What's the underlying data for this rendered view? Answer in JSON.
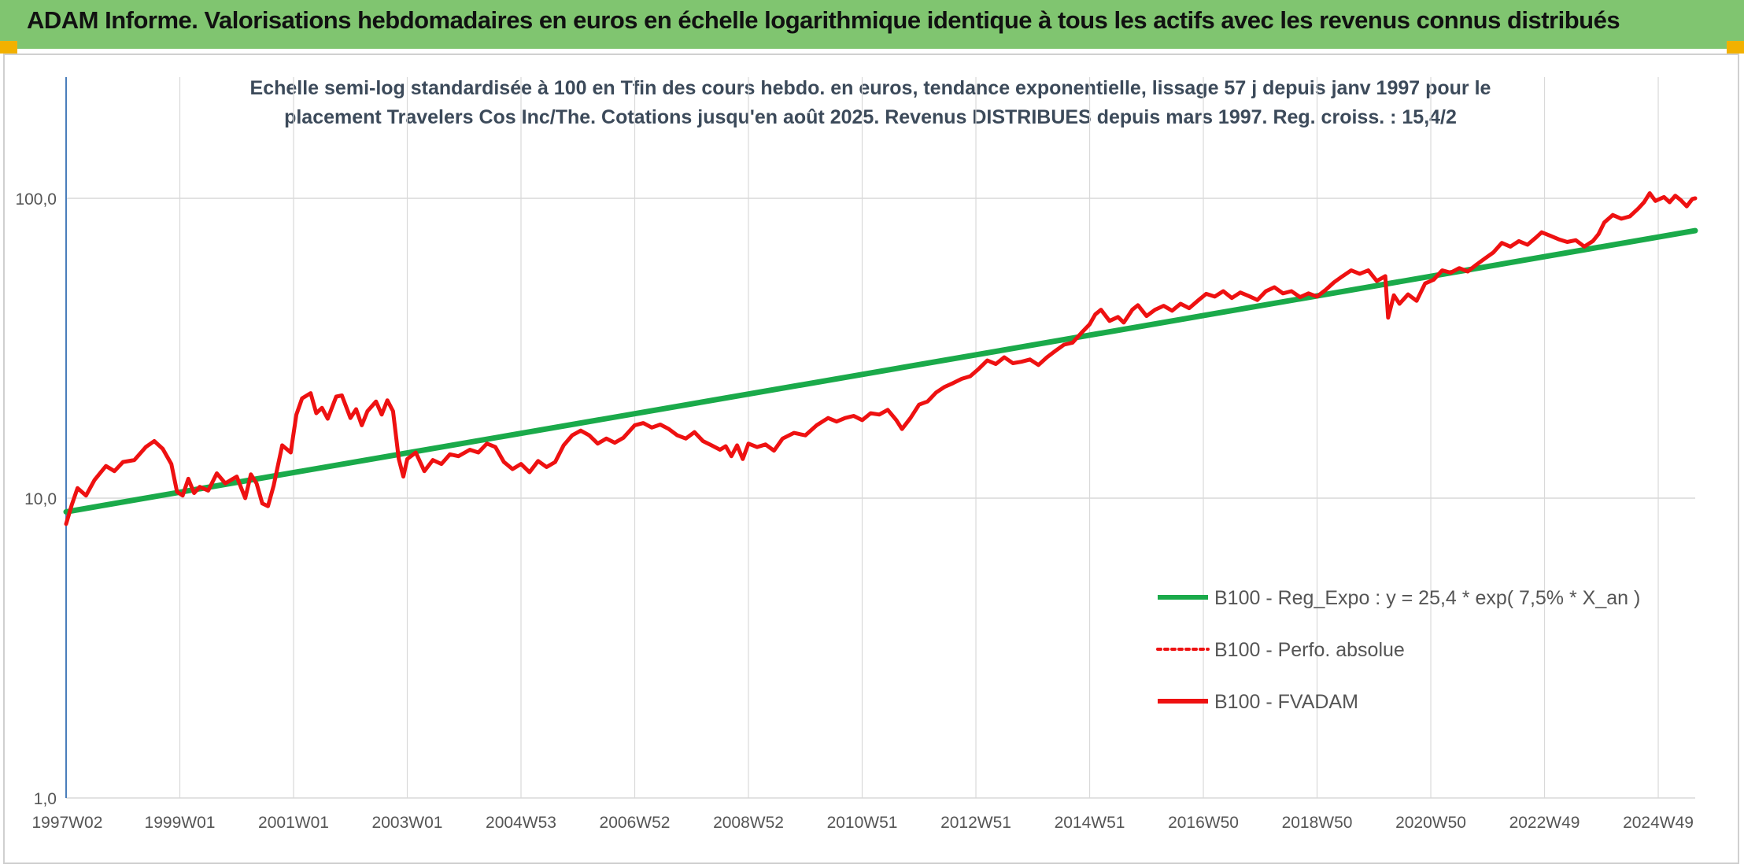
{
  "banner": {
    "title": "ADAM Informe. Valorisations hebdomadaires en euros en échelle logarithmique identique à tous les actifs avec les revenus connus distribués"
  },
  "colors": {
    "banner_bg": "#80c570",
    "accent_corner": "#f2b100",
    "trend": "#1aaa4a",
    "fvadam": "#ee1111",
    "perfo": "#ee1111",
    "grid": "#d9d9d9",
    "axis": "#4a7ebb"
  },
  "chart_data": {
    "type": "line",
    "title_lines": [
      "Echelle semi-log standardisée à 100 en Tfin des cours hebdo. en euros, tendance exponentielle, lissage 57 j depuis janv 1997 pour le",
      "placement Travelers Cos Inc/The. Cotations jusqu'en août 2025. Revenus DISTRIBUES depuis mars 1997. Reg. croiss. : 15,4/2"
    ],
    "y_scale": "log",
    "ylim": [
      1,
      200
    ],
    "y_ticks": [
      {
        "value": 1,
        "label": "1,0"
      },
      {
        "value": 10,
        "label": "10,0"
      },
      {
        "value": 100,
        "label": "100,0"
      }
    ],
    "x_range": [
      1997.0,
      2025.65
    ],
    "x_ticks": [
      {
        "label": "1997W02",
        "x": 1997.02
      },
      {
        "label": "1999W01",
        "x": 1999.0
      },
      {
        "label": "2001W01",
        "x": 2001.0
      },
      {
        "label": "2003W01",
        "x": 2003.0
      },
      {
        "label": "2004W53",
        "x": 2005.0
      },
      {
        "label": "2006W52",
        "x": 2007.0
      },
      {
        "label": "2008W52",
        "x": 2009.0
      },
      {
        "label": "2010W51",
        "x": 2011.0
      },
      {
        "label": "2012W51",
        "x": 2013.0
      },
      {
        "label": "2014W51",
        "x": 2015.0
      },
      {
        "label": "2016W50",
        "x": 2017.0
      },
      {
        "label": "2018W50",
        "x": 2019.0
      },
      {
        "label": "2020W50",
        "x": 2021.0
      },
      {
        "label": "2022W49",
        "x": 2023.0
      },
      {
        "label": "2024W49",
        "x": 2025.0
      }
    ],
    "grid": true,
    "legend_position": "right",
    "series": [
      {
        "name": "B100 - Reg_Expo : y = 25,4 * exp( 7,5% *  X_an )",
        "style": "solid-thick",
        "color": "#1aaa4a",
        "points": [
          [
            1997.0,
            9.0
          ],
          [
            2025.65,
            78.0
          ]
        ]
      },
      {
        "name": "B100 - Perfo. absolue",
        "style": "dotted",
        "color": "#ee1111",
        "points": []
      },
      {
        "name": "B100 - FVADAM",
        "style": "solid",
        "color": "#ee1111",
        "points": [
          [
            1997.0,
            8.2
          ],
          [
            1997.1,
            9.5
          ],
          [
            1997.2,
            10.8
          ],
          [
            1997.35,
            10.2
          ],
          [
            1997.5,
            11.5
          ],
          [
            1997.7,
            12.8
          ],
          [
            1997.85,
            12.3
          ],
          [
            1998.0,
            13.2
          ],
          [
            1998.2,
            13.4
          ],
          [
            1998.4,
            14.8
          ],
          [
            1998.55,
            15.5
          ],
          [
            1998.7,
            14.6
          ],
          [
            1998.85,
            13.0
          ],
          [
            1998.95,
            10.5
          ],
          [
            1999.05,
            10.2
          ],
          [
            1999.15,
            11.6
          ],
          [
            1999.25,
            10.4
          ],
          [
            1999.35,
            10.9
          ],
          [
            1999.5,
            10.6
          ],
          [
            1999.65,
            12.1
          ],
          [
            1999.8,
            11.2
          ],
          [
            2000.0,
            11.8
          ],
          [
            2000.15,
            10.0
          ],
          [
            2000.25,
            12.0
          ],
          [
            2000.35,
            11.2
          ],
          [
            2000.45,
            9.6
          ],
          [
            2000.55,
            9.4
          ],
          [
            2000.65,
            11.0
          ],
          [
            2000.8,
            15.0
          ],
          [
            2000.95,
            14.2
          ],
          [
            2001.05,
            19.0
          ],
          [
            2001.15,
            21.5
          ],
          [
            2001.3,
            22.4
          ],
          [
            2001.4,
            19.2
          ],
          [
            2001.5,
            20.0
          ],
          [
            2001.6,
            18.4
          ],
          [
            2001.75,
            21.8
          ],
          [
            2001.85,
            22.0
          ],
          [
            2002.0,
            18.5
          ],
          [
            2002.1,
            19.8
          ],
          [
            2002.2,
            17.5
          ],
          [
            2002.3,
            19.5
          ],
          [
            2002.45,
            21.0
          ],
          [
            2002.55,
            19.0
          ],
          [
            2002.65,
            21.2
          ],
          [
            2002.75,
            19.5
          ],
          [
            2002.85,
            13.5
          ],
          [
            2002.93,
            11.8
          ],
          [
            2003.0,
            13.5
          ],
          [
            2003.15,
            14.2
          ],
          [
            2003.3,
            12.3
          ],
          [
            2003.45,
            13.4
          ],
          [
            2003.6,
            13.0
          ],
          [
            2003.75,
            14.0
          ],
          [
            2003.9,
            13.8
          ],
          [
            2004.1,
            14.5
          ],
          [
            2004.25,
            14.2
          ],
          [
            2004.4,
            15.2
          ],
          [
            2004.55,
            14.8
          ],
          [
            2004.7,
            13.2
          ],
          [
            2004.85,
            12.5
          ],
          [
            2005.0,
            13.0
          ],
          [
            2005.15,
            12.2
          ],
          [
            2005.3,
            13.3
          ],
          [
            2005.45,
            12.7
          ],
          [
            2005.6,
            13.2
          ],
          [
            2005.75,
            15.0
          ],
          [
            2005.9,
            16.2
          ],
          [
            2006.05,
            16.8
          ],
          [
            2006.2,
            16.2
          ],
          [
            2006.35,
            15.2
          ],
          [
            2006.5,
            15.8
          ],
          [
            2006.65,
            15.3
          ],
          [
            2006.8,
            15.9
          ],
          [
            2007.0,
            17.5
          ],
          [
            2007.15,
            17.8
          ],
          [
            2007.3,
            17.2
          ],
          [
            2007.45,
            17.6
          ],
          [
            2007.6,
            17.0
          ],
          [
            2007.75,
            16.2
          ],
          [
            2007.9,
            15.8
          ],
          [
            2008.05,
            16.6
          ],
          [
            2008.2,
            15.5
          ],
          [
            2008.35,
            15.0
          ],
          [
            2008.5,
            14.5
          ],
          [
            2008.6,
            14.9
          ],
          [
            2008.7,
            13.8
          ],
          [
            2008.8,
            15.0
          ],
          [
            2008.9,
            13.5
          ],
          [
            2009.0,
            15.2
          ],
          [
            2009.15,
            14.8
          ],
          [
            2009.3,
            15.1
          ],
          [
            2009.45,
            14.4
          ],
          [
            2009.6,
            15.8
          ],
          [
            2009.8,
            16.5
          ],
          [
            2010.0,
            16.2
          ],
          [
            2010.2,
            17.5
          ],
          [
            2010.4,
            18.5
          ],
          [
            2010.55,
            18.0
          ],
          [
            2010.7,
            18.5
          ],
          [
            2010.85,
            18.8
          ],
          [
            2011.0,
            18.2
          ],
          [
            2011.15,
            19.2
          ],
          [
            2011.3,
            19.0
          ],
          [
            2011.45,
            19.7
          ],
          [
            2011.6,
            18.2
          ],
          [
            2011.7,
            17.0
          ],
          [
            2011.85,
            18.5
          ],
          [
            2012.0,
            20.5
          ],
          [
            2012.15,
            21.0
          ],
          [
            2012.3,
            22.5
          ],
          [
            2012.45,
            23.5
          ],
          [
            2012.6,
            24.2
          ],
          [
            2012.75,
            25.0
          ],
          [
            2012.9,
            25.5
          ],
          [
            2013.05,
            27.0
          ],
          [
            2013.2,
            28.8
          ],
          [
            2013.35,
            28.0
          ],
          [
            2013.5,
            29.5
          ],
          [
            2013.65,
            28.2
          ],
          [
            2013.8,
            28.5
          ],
          [
            2013.95,
            29.0
          ],
          [
            2014.1,
            27.8
          ],
          [
            2014.25,
            29.5
          ],
          [
            2014.4,
            31.0
          ],
          [
            2014.55,
            32.5
          ],
          [
            2014.7,
            33.0
          ],
          [
            2014.85,
            35.5
          ],
          [
            2015.0,
            38.0
          ],
          [
            2015.1,
            41.0
          ],
          [
            2015.2,
            42.5
          ],
          [
            2015.35,
            39.0
          ],
          [
            2015.5,
            40.2
          ],
          [
            2015.6,
            38.5
          ],
          [
            2015.75,
            42.5
          ],
          [
            2015.85,
            44.0
          ],
          [
            2016.0,
            40.5
          ],
          [
            2016.15,
            42.5
          ],
          [
            2016.3,
            43.8
          ],
          [
            2016.45,
            42.2
          ],
          [
            2016.6,
            44.5
          ],
          [
            2016.75,
            43.0
          ],
          [
            2016.9,
            45.5
          ],
          [
            2017.05,
            48.0
          ],
          [
            2017.2,
            47.0
          ],
          [
            2017.35,
            49.0
          ],
          [
            2017.5,
            46.5
          ],
          [
            2017.65,
            48.5
          ],
          [
            2017.8,
            47.2
          ],
          [
            2017.95,
            45.8
          ],
          [
            2018.1,
            49.0
          ],
          [
            2018.25,
            50.5
          ],
          [
            2018.4,
            48.2
          ],
          [
            2018.55,
            49.0
          ],
          [
            2018.7,
            46.8
          ],
          [
            2018.85,
            48.2
          ],
          [
            2019.0,
            47.0
          ],
          [
            2019.15,
            49.5
          ],
          [
            2019.3,
            52.5
          ],
          [
            2019.45,
            55.0
          ],
          [
            2019.6,
            57.5
          ],
          [
            2019.75,
            56.0
          ],
          [
            2019.9,
            57.5
          ],
          [
            2020.05,
            53.0
          ],
          [
            2020.2,
            55.0
          ],
          [
            2020.25,
            40.0
          ],
          [
            2020.35,
            47.5
          ],
          [
            2020.45,
            44.5
          ],
          [
            2020.6,
            47.8
          ],
          [
            2020.75,
            45.5
          ],
          [
            2020.9,
            52.0
          ],
          [
            2021.05,
            53.5
          ],
          [
            2021.2,
            57.5
          ],
          [
            2021.35,
            56.5
          ],
          [
            2021.5,
            58.5
          ],
          [
            2021.65,
            57.0
          ],
          [
            2021.8,
            60.0
          ],
          [
            2021.95,
            63.0
          ],
          [
            2022.1,
            66.0
          ],
          [
            2022.25,
            71.0
          ],
          [
            2022.4,
            69.0
          ],
          [
            2022.55,
            72.0
          ],
          [
            2022.7,
            70.0
          ],
          [
            2022.85,
            74.0
          ],
          [
            2022.95,
            77.0
          ],
          [
            2023.1,
            75.0
          ],
          [
            2023.25,
            73.0
          ],
          [
            2023.4,
            71.5
          ],
          [
            2023.55,
            72.5
          ],
          [
            2023.7,
            69.0
          ],
          [
            2023.85,
            72.0
          ],
          [
            2023.95,
            76.0
          ],
          [
            2024.05,
            83.0
          ],
          [
            2024.2,
            88.0
          ],
          [
            2024.35,
            85.5
          ],
          [
            2024.5,
            87.0
          ],
          [
            2024.65,
            92.5
          ],
          [
            2024.75,
            97.0
          ],
          [
            2024.85,
            104.0
          ],
          [
            2024.95,
            98.0
          ],
          [
            2025.1,
            101.0
          ],
          [
            2025.2,
            97.0
          ],
          [
            2025.3,
            102.0
          ],
          [
            2025.4,
            98.5
          ],
          [
            2025.5,
            94.0
          ],
          [
            2025.6,
            99.5
          ],
          [
            2025.65,
            100.0
          ]
        ]
      }
    ]
  }
}
